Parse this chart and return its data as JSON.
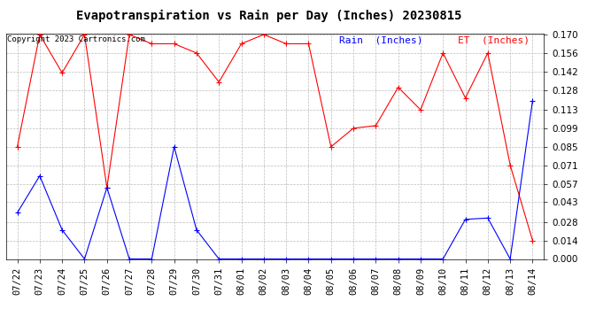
{
  "title": "Evapotranspiration vs Rain per Day (Inches) 20230815",
  "copyright": "Copyright 2023 Cartronics.com",
  "legend_rain": "Rain  (Inches)",
  "legend_et": "ET  (Inches)",
  "dates": [
    "07/22",
    "07/23",
    "07/24",
    "07/25",
    "07/26",
    "07/27",
    "07/28",
    "07/29",
    "07/30",
    "07/31",
    "08/01",
    "08/02",
    "08/03",
    "08/04",
    "08/05",
    "08/06",
    "08/07",
    "08/08",
    "08/09",
    "08/10",
    "08/11",
    "08/12",
    "08/13",
    "08/14"
  ],
  "rain": [
    0.035,
    0.063,
    0.022,
    0.0,
    0.054,
    0.0,
    0.0,
    0.085,
    0.022,
    0.0,
    0.0,
    0.0,
    0.0,
    0.0,
    0.0,
    0.0,
    0.0,
    0.0,
    0.0,
    0.0,
    0.03,
    0.031,
    0.0,
    0.12
  ],
  "et": [
    0.085,
    0.17,
    0.141,
    0.17,
    0.054,
    0.17,
    0.163,
    0.163,
    0.156,
    0.134,
    0.163,
    0.17,
    0.163,
    0.163,
    0.085,
    0.099,
    0.101,
    0.13,
    0.113,
    0.156,
    0.122,
    0.156,
    0.071,
    0.014
  ],
  "rain_color": "blue",
  "et_color": "red",
  "ylim": [
    0.0,
    0.17
  ],
  "yticks": [
    0.0,
    0.014,
    0.028,
    0.043,
    0.057,
    0.071,
    0.085,
    0.099,
    0.113,
    0.128,
    0.142,
    0.156,
    0.17
  ],
  "background_color": "white",
  "grid_color": "#bbbbbb",
  "title_fontsize": 10,
  "axis_fontsize": 7.5,
  "copyright_fontsize": 6.5,
  "legend_fontsize": 8
}
